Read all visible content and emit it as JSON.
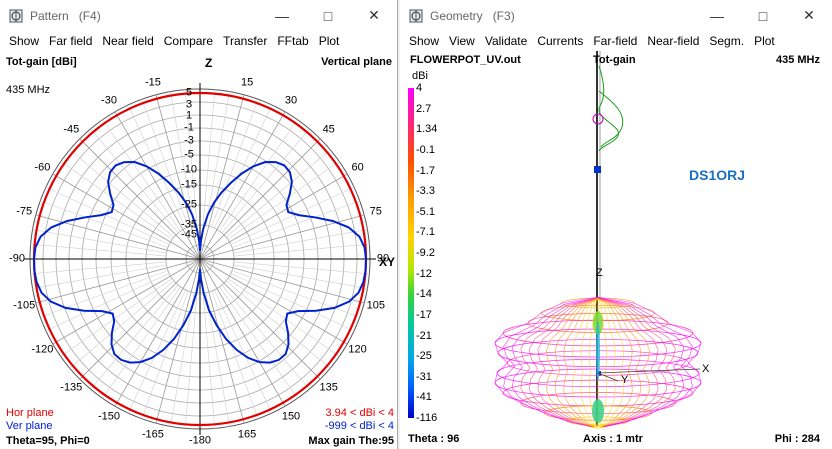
{
  "pattern_window": {
    "title": "Pattern",
    "key": "(F4)",
    "menu": [
      "Show",
      "Far field",
      "Near field",
      "Compare",
      "Transfer",
      "FFtab",
      "Plot"
    ],
    "top_left": "Tot-gain [dBi]",
    "frequency": "435 MHz",
    "top_right": "Vertical plane",
    "hor_plane_label": "Hor plane",
    "ver_plane_label": "Ver plane",
    "hor_plane_range": "3.94 < dBi < 4",
    "ver_plane_range": "-999 < dBi < 4",
    "bottom_left": "Theta=95, Phi=0",
    "bottom_right": "Max gain The:95",
    "z_axis_label": "Z",
    "xy_axis_label": "XY",
    "colors": {
      "hor": "#e00000",
      "ver": "#0022cc"
    },
    "angle_labels": [
      "-15",
      "15",
      "-30",
      "30",
      "-45",
      "45",
      "-60",
      "60",
      "-75",
      "75",
      "-90",
      "90",
      "-105",
      "105",
      "-120",
      "120",
      "-135",
      "135",
      "-150",
      "150",
      "-165",
      "165",
      "-180"
    ],
    "ring_labels": [
      "5",
      "3",
      "1",
      "-1",
      "-3",
      "-5",
      "-10",
      "-15",
      "-25",
      "-35",
      "-45"
    ]
  },
  "geometry_window": {
    "title": "Geometry",
    "key": "(F3)",
    "menu": [
      "Show",
      "View",
      "Validate",
      "Currents",
      "Far-field",
      "Near-field",
      "Segm.",
      "Plot"
    ],
    "file": "FLOWERPOT_UV.out",
    "mode": "Tot-gain",
    "frequency": "435 MHz",
    "unit": "dBi",
    "callsign": "DS1ORJ",
    "z_label": "Z",
    "y_label": "Y",
    "x_label": "X",
    "theta": "Theta : 96",
    "axis": "Axis : 1 mtr",
    "phi": "Phi : 284",
    "scale_values": [
      "4",
      "2.7",
      "1.34",
      "-0.1",
      "-1.7",
      "-3.3",
      "-5.1",
      "-7.1",
      "-9.2",
      "-12",
      "-14",
      "-17",
      "-21",
      "-25",
      "-31",
      "-41",
      "-116"
    ],
    "callsign_color": "#1a6fc0"
  }
}
